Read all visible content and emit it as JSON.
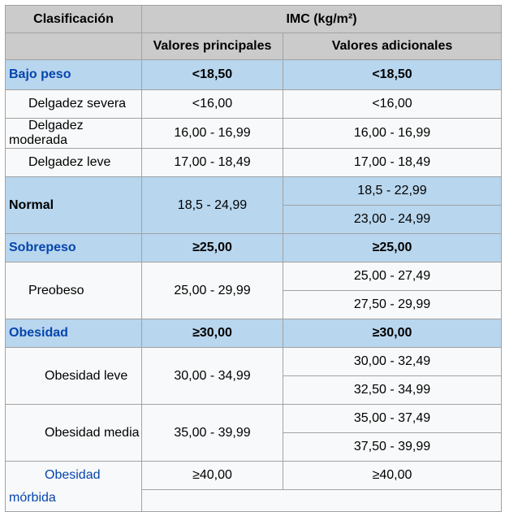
{
  "header": {
    "classification": "Clasificación",
    "imc": "IMC (kg/m²)",
    "principal": "Valores principales",
    "additional": "Valores adicionales"
  },
  "rows": {
    "bajo_peso": {
      "label": "Bajo peso",
      "principal": "<18,50",
      "additional": "<18,50"
    },
    "delgadez_severa": {
      "label": "Delgadez severa",
      "principal": "<16,00",
      "additional": "<16,00"
    },
    "delgadez_moderada": {
      "label": "Delgadez moderada",
      "principal": "16,00 - 16,99",
      "additional": "16,00 - 16,99"
    },
    "delgadez_leve": {
      "label": "Delgadez leve",
      "principal": "17,00 - 18,49",
      "additional": "17,00 - 18,49"
    },
    "normal": {
      "label": "Normal",
      "principal": "18,5 - 24,99",
      "additional": [
        "18,5 - 22,99",
        "23,00 - 24,99"
      ]
    },
    "sobrepeso": {
      "label": "Sobrepeso",
      "principal": "≥25,00",
      "additional": "≥25,00"
    },
    "preobeso": {
      "label": "Preobeso",
      "principal": "25,00 - 29,99",
      "additional": [
        "25,00 - 27,49",
        "27,50 - 29,99"
      ]
    },
    "obesidad": {
      "label": "Obesidad",
      "principal": "≥30,00",
      "additional": "≥30,00"
    },
    "obesidad_leve": {
      "label": "Obesidad leve",
      "principal": "30,00 - 34,99",
      "additional": [
        "30,00 - 32,49",
        "32,50 - 34,99"
      ]
    },
    "obesidad_media": {
      "label": "Obesidad media",
      "principal": "35,00 - 39,99",
      "additional": [
        "35,00 - 37,49",
        "37,50 - 39,99"
      ]
    },
    "obesidad_morbida": {
      "label": "Obesidad mórbida",
      "principal": "≥40,00",
      "additional": "≥40,00"
    }
  },
  "colors": {
    "header_bg": "#cbcbcb",
    "highlight_row_bg": "#b8d6ee",
    "row_bg": "#f8f9fa",
    "border": "#a2a2a2",
    "link": "#0645ad",
    "text": "#000000"
  }
}
